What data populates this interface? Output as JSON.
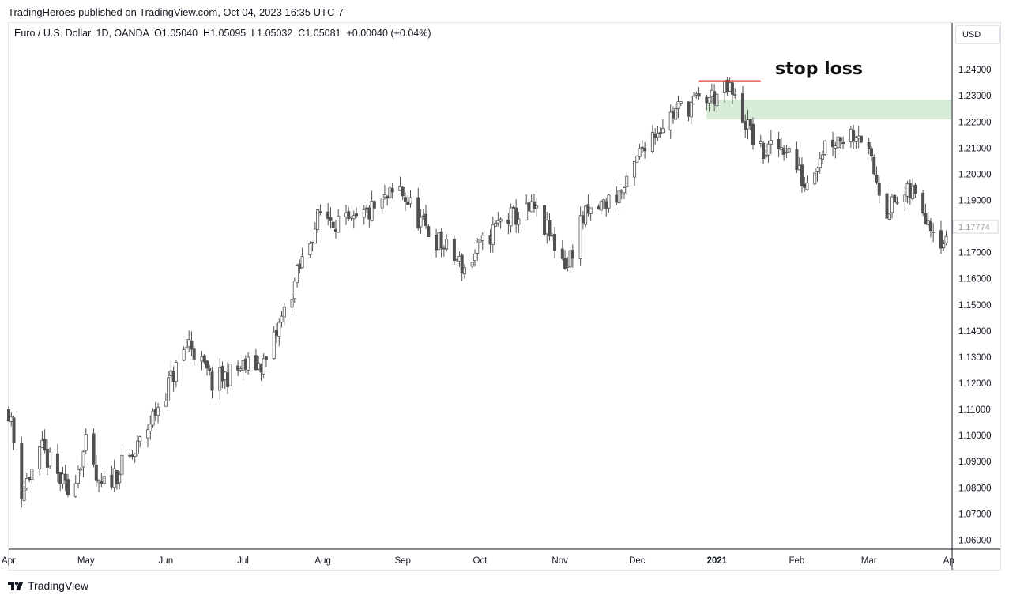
{
  "header": {
    "published": "TradingHeroes published on TradingView.com, Oct 04, 2023 16:35 UTC-7"
  },
  "legend": {
    "symbol": "Euro / U.S. Dollar, 1D, OANDA",
    "open_label": "O",
    "open": "1.05040",
    "high_label": "H",
    "high": "1.05095",
    "low_label": "L",
    "low": "1.05032",
    "close_label": "C",
    "close": "1.05081",
    "change": "+0.00040 (+0.04%)"
  },
  "currency_button": {
    "label": "USD"
  },
  "footer": {
    "brand": "TradingView"
  },
  "colors": {
    "candle": "#505050",
    "stop_line": "#e01c1c",
    "zone": "#d6ecd6",
    "axis_text": "#131722"
  },
  "chart_data": {
    "type": "candlestick",
    "title": "",
    "symbol": "EUR/USD",
    "timeframe": "1D",
    "x_labels": [
      "Apr",
      "May",
      "Jun",
      "Jul",
      "Aug",
      "Sep",
      "Oct",
      "Nov",
      "Dec",
      "2021",
      "Feb",
      "Mar",
      "Ap"
    ],
    "y_ticks": [
      "1.24000",
      "1.23000",
      "1.22000",
      "1.21000",
      "1.20000",
      "1.19000",
      "1.18000",
      "1.17000",
      "1.16000",
      "1.15000",
      "1.14000",
      "1.13000",
      "1.12000",
      "1.11000",
      "1.10000",
      "1.09000",
      "1.08000",
      "1.07000",
      "1.06000"
    ],
    "ylim": [
      1.0565,
      1.2485
    ],
    "current_price_label": "1.17774",
    "price_path": [
      {
        "date": "2020-04-01",
        "price": 1.11
      },
      {
        "date": "2020-04-06",
        "price": 1.079
      },
      {
        "date": "2020-04-14",
        "price": 1.094
      },
      {
        "date": "2020-04-24",
        "price": 1.078
      },
      {
        "date": "2020-05-01",
        "price": 1.096
      },
      {
        "date": "2020-05-06",
        "price": 1.079
      },
      {
        "date": "2020-05-20",
        "price": 1.093
      },
      {
        "date": "2020-06-10",
        "price": 1.136
      },
      {
        "date": "2020-06-19",
        "price": 1.12
      },
      {
        "date": "2020-07-01",
        "price": 1.126
      },
      {
        "date": "2020-07-10",
        "price": 1.128
      },
      {
        "date": "2020-07-27",
        "price": 1.175
      },
      {
        "date": "2020-07-31",
        "price": 1.185
      },
      {
        "date": "2020-08-12",
        "price": 1.18
      },
      {
        "date": "2020-08-31",
        "price": 1.194
      },
      {
        "date": "2020-09-09",
        "price": 1.18
      },
      {
        "date": "2020-09-25",
        "price": 1.164
      },
      {
        "date": "2020-10-09",
        "price": 1.182
      },
      {
        "date": "2020-10-22",
        "price": 1.186
      },
      {
        "date": "2020-11-04",
        "price": 1.165
      },
      {
        "date": "2020-11-09",
        "price": 1.182
      },
      {
        "date": "2020-11-27",
        "price": 1.195
      },
      {
        "date": "2020-12-04",
        "price": 1.213
      },
      {
        "date": "2020-12-17",
        "price": 1.225
      },
      {
        "date": "2021-01-06",
        "price": 1.232
      },
      {
        "date": "2021-01-18",
        "price": 1.208
      },
      {
        "date": "2021-01-28",
        "price": 1.211
      },
      {
        "date": "2021-02-04",
        "price": 1.196
      },
      {
        "date": "2021-02-12",
        "price": 1.212
      },
      {
        "date": "2021-02-25",
        "price": 1.217
      },
      {
        "date": "2021-03-08",
        "price": 1.187
      },
      {
        "date": "2021-03-18",
        "price": 1.193
      },
      {
        "date": "2021-03-31",
        "price": 1.173
      }
    ],
    "annotations": {
      "stop_loss": {
        "label": "stop loss",
        "price": 1.2356,
        "from": "2020-12-25",
        "to": "2021-01-18"
      },
      "zone": {
        "from_price": 1.221,
        "to_price": 1.2285,
        "from": "2020-12-28"
      }
    }
  }
}
